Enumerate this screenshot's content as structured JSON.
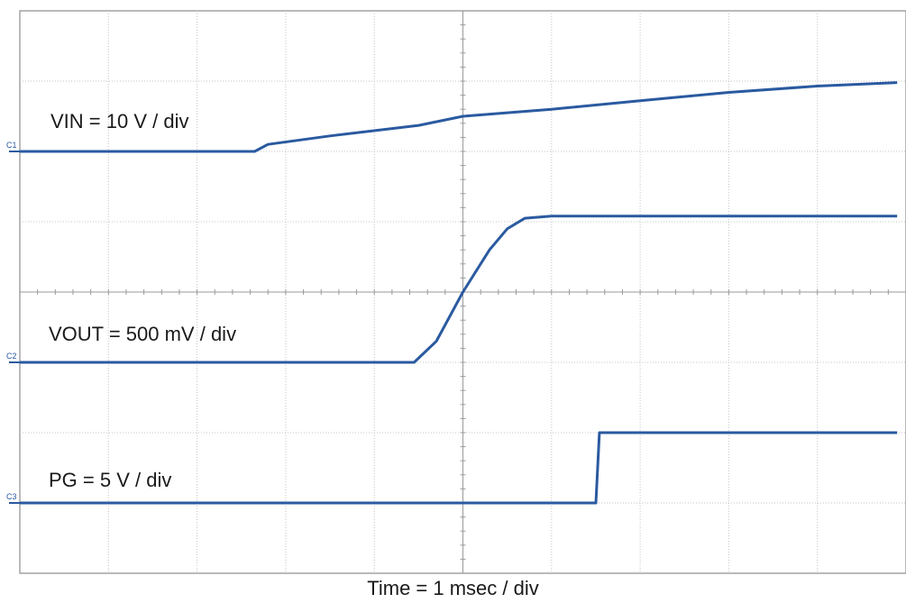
{
  "chart_data": {
    "type": "line",
    "xlabel": "Time = 1 msec / div",
    "ylabel": "",
    "grid": true,
    "divisions": {
      "x": 10,
      "y": 8
    },
    "xlim": [
      0,
      10
    ],
    "ylim": [
      -4,
      4
    ],
    "channel_markers": [
      "C1",
      "C2",
      "C3"
    ],
    "trace_color": "#2a5aa0",
    "series": [
      {
        "name": "VIN = 10 V / div",
        "marker": "C1",
        "points": [
          [
            0,
            2.0
          ],
          [
            2.65,
            2.0
          ],
          [
            2.8,
            2.1
          ],
          [
            3.5,
            2.22
          ],
          [
            4.5,
            2.37
          ],
          [
            5.0,
            2.5
          ],
          [
            6.0,
            2.6
          ],
          [
            7.0,
            2.72
          ],
          [
            8.0,
            2.84
          ],
          [
            9.0,
            2.93
          ],
          [
            9.9,
            2.98
          ]
        ]
      },
      {
        "name": "VOUT = 500 mV / div",
        "marker": "C2",
        "points": [
          [
            0,
            -1.0
          ],
          [
            4.45,
            -1.0
          ],
          [
            4.7,
            -0.7
          ],
          [
            5.0,
            0.0
          ],
          [
            5.3,
            0.6
          ],
          [
            5.5,
            0.9
          ],
          [
            5.7,
            1.05
          ],
          [
            6.0,
            1.08
          ],
          [
            7.0,
            1.08
          ],
          [
            8.0,
            1.08
          ],
          [
            9.0,
            1.08
          ],
          [
            9.9,
            1.08
          ]
        ]
      },
      {
        "name": "PG = 5 V / div",
        "marker": "C3",
        "points": [
          [
            0,
            -3.0
          ],
          [
            6.5,
            -3.0
          ],
          [
            6.54,
            -2.0
          ],
          [
            7.0,
            -2.0
          ],
          [
            8.0,
            -2.0
          ],
          [
            9.0,
            -2.0
          ],
          [
            9.9,
            -2.0
          ]
        ]
      }
    ]
  }
}
